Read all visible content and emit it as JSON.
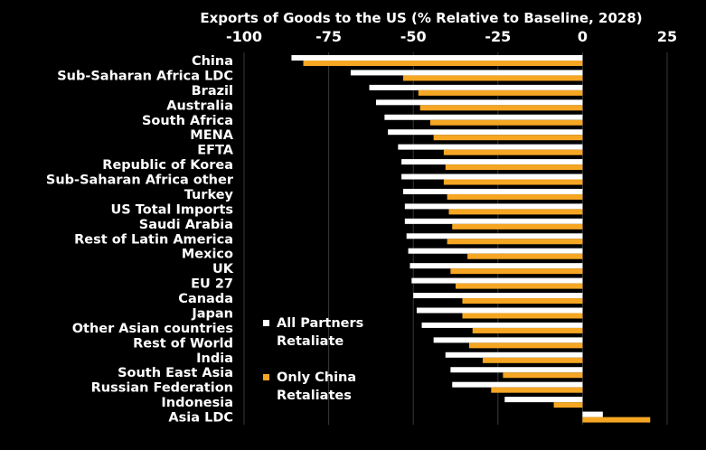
{
  "chart_data": {
    "type": "bar",
    "orientation": "horizontal",
    "title": "Exports of Goods to the US (% Relative to Baseline, 2028)",
    "xlim": [
      -100,
      25
    ],
    "xticks": [
      -100,
      -75,
      -50,
      -25,
      0,
      25
    ],
    "xtick_labels": [
      "-100",
      "-75",
      "-50",
      "-25",
      "0",
      "25"
    ],
    "grid": true,
    "legend_position": "center-right",
    "categories": [
      "China",
      "Sub-Saharan Africa LDC",
      "Brazil",
      "Australia",
      "South Africa",
      "MENA",
      "EFTA",
      "Republic of Korea",
      "Sub-Saharan Africa other",
      "Turkey",
      "US Total Imports",
      "Saudi Arabia",
      "Rest of Latin America",
      "Mexico",
      "UK",
      "EU 27",
      "Canada",
      "Japan",
      "Other Asian countries",
      "Rest of World",
      "India",
      "South East Asia",
      "Russian Federation",
      "Indonesia",
      "Asia LDC"
    ],
    "series": [
      {
        "name": "All Partners Retaliate",
        "color": "#ffffff",
        "values": [
          -86,
          -68.5,
          -63,
          -61,
          -58.5,
          -57.5,
          -54.5,
          -53.5,
          -53.5,
          -53,
          -52.5,
          -52.5,
          -52,
          -51.5,
          -51,
          -50.5,
          -50,
          -49,
          -47.5,
          -44,
          -40.5,
          -39,
          -38.5,
          -23,
          6
        ]
      },
      {
        "name": "Only China Retaliates",
        "color": "#f5a623",
        "values": [
          -82.5,
          -53,
          -48.5,
          -48,
          -45,
          -44,
          -41,
          -40.5,
          -41,
          -40,
          -39.5,
          -38.5,
          -40,
          -34,
          -39,
          -37.5,
          -35.5,
          -35.5,
          -32.5,
          -33.5,
          -29.5,
          -23.5,
          -27,
          -8.5,
          20
        ]
      }
    ],
    "legend": [
      {
        "line1": "All Partners",
        "line2": "Retaliate",
        "color": "#ffffff"
      },
      {
        "line1": "Only China",
        "line2": "Retaliates",
        "color": "#f5a623"
      }
    ]
  }
}
